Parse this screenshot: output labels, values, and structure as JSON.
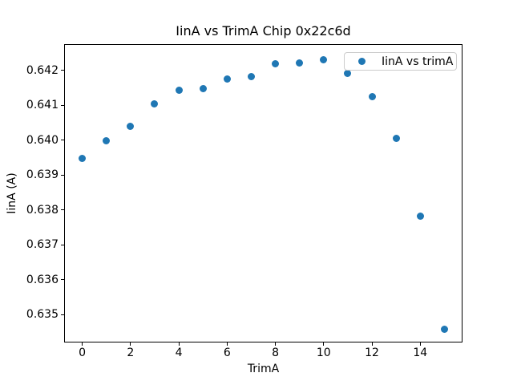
{
  "chart_data": {
    "type": "scatter",
    "title": "IinA vs TrimA Chip 0x22c6d",
    "xlabel": "TrimA",
    "ylabel": "IinA (A)",
    "legend": {
      "label": "IinA vs trimA",
      "position": "upper right",
      "marker_icon": "filled-circle"
    },
    "marker": {
      "shape": "circle",
      "color": "#1f77b4"
    },
    "x": [
      0,
      1,
      2,
      3,
      4,
      5,
      6,
      7,
      8,
      9,
      10,
      11,
      12,
      13,
      14,
      15
    ],
    "y": [
      0.63947,
      0.63997,
      0.64039,
      0.64104,
      0.64143,
      0.64148,
      0.64175,
      0.64183,
      0.64218,
      0.6422,
      0.64231,
      0.64192,
      0.64124,
      0.64005,
      0.63781,
      0.63459
    ],
    "series": [
      {
        "name": "IinA vs trimA",
        "x": [
          0,
          1,
          2,
          3,
          4,
          5,
          6,
          7,
          8,
          9,
          10,
          11,
          12,
          13,
          14,
          15
        ],
        "y": [
          0.63947,
          0.63997,
          0.64039,
          0.64104,
          0.64143,
          0.64148,
          0.64175,
          0.64183,
          0.64218,
          0.6422,
          0.64231,
          0.64192,
          0.64124,
          0.64005,
          0.63781,
          0.63459
        ]
      }
    ],
    "xlim": [
      -0.75,
      15.75
    ],
    "ylim": [
      0.6342,
      0.64275
    ],
    "x_ticks": [
      0,
      2,
      4,
      6,
      8,
      10,
      12,
      14
    ],
    "y_ticks": [
      0.635,
      0.636,
      0.637,
      0.638,
      0.639,
      0.64,
      0.641,
      0.642
    ],
    "y_tick_decimals": 3,
    "grid": false,
    "text_color": "#000000",
    "background_color": "#ffffff"
  }
}
